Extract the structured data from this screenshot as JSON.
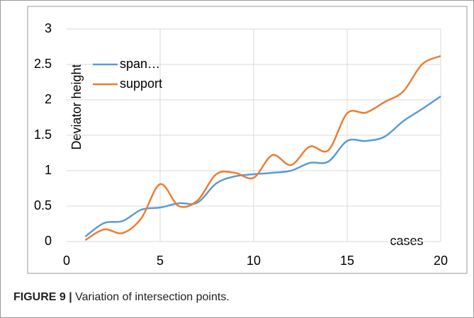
{
  "chart_data": {
    "type": "line",
    "y_label": "Deviator height",
    "x_label": "cases",
    "x": [
      1,
      2,
      3,
      4,
      5,
      6,
      7,
      8,
      9,
      10,
      11,
      12,
      13,
      14,
      15,
      16,
      17,
      18,
      19,
      20
    ],
    "series": [
      {
        "name": "span…",
        "color": "#5b9bd5",
        "values": [
          0.07,
          0.26,
          0.29,
          0.45,
          0.48,
          0.54,
          0.55,
          0.82,
          0.92,
          0.95,
          0.97,
          1.0,
          1.11,
          1.13,
          1.42,
          1.42,
          1.48,
          1.7,
          1.87,
          2.05
        ]
      },
      {
        "name": "support",
        "color": "#ed7d31",
        "values": [
          0.02,
          0.17,
          0.12,
          0.33,
          0.81,
          0.5,
          0.58,
          0.95,
          0.97,
          0.9,
          1.22,
          1.08,
          1.34,
          1.29,
          1.81,
          1.82,
          1.97,
          2.12,
          2.5,
          2.62
        ]
      }
    ],
    "xlim": [
      0,
      20
    ],
    "xticks": [
      0,
      5,
      10,
      15,
      20
    ],
    "ylim": [
      0,
      3
    ],
    "yticks": [
      0,
      0.5,
      1,
      1.5,
      2,
      2.5,
      3
    ],
    "grid": true,
    "smooth": true,
    "legend": "upper left"
  },
  "caption": {
    "label": "FIGURE 9 |",
    "text": "Variation of intersection points."
  }
}
